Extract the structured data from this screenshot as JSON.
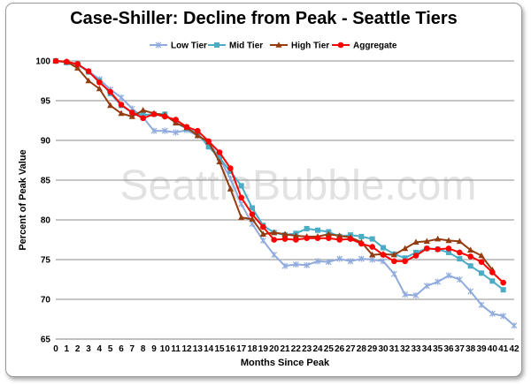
{
  "chart_data": {
    "type": "line",
    "title": "Case-Shiller: Decline from Peak - Seattle Tiers",
    "xlabel": "Months Since Peak",
    "ylabel": "Percent of Peak Value",
    "ylim": [
      65,
      100
    ],
    "yticks": [
      65,
      70,
      75,
      80,
      85,
      90,
      95,
      100
    ],
    "x": [
      0,
      1,
      2,
      3,
      4,
      5,
      6,
      7,
      8,
      9,
      10,
      11,
      12,
      13,
      14,
      15,
      16,
      17,
      18,
      19,
      20,
      21,
      22,
      23,
      24,
      25,
      26,
      27,
      28,
      29,
      30,
      31,
      32,
      33,
      34,
      35,
      36,
      37,
      38,
      39,
      40,
      41,
      42
    ],
    "grid": "horizontal",
    "legend_position": "top",
    "watermark": "SeattleBubble.com",
    "series": [
      {
        "name": "Low Tier",
        "color": "#8faadc",
        "marker": "star",
        "values": [
          100,
          99.8,
          99.5,
          98.7,
          97.7,
          96.4,
          95.4,
          94.0,
          92.9,
          91.2,
          91.2,
          91.0,
          91.3,
          90.6,
          89.8,
          87.8,
          85.2,
          82.0,
          79.5,
          77.4,
          75.6,
          74.2,
          74.4,
          74.3,
          74.8,
          74.7,
          75.1,
          74.8,
          75.1,
          75.0,
          74.8,
          73.2,
          70.6,
          70.5,
          71.7,
          72.2,
          73.0,
          72.5,
          71.0,
          69.3,
          68.2,
          67.9,
          66.7
        ]
      },
      {
        "name": "Mid Tier",
        "color": "#4bacc6",
        "marker": "square",
        "values": [
          100,
          99.8,
          99.6,
          98.6,
          97.5,
          95.9,
          94.4,
          93.5,
          93.2,
          93.3,
          93.3,
          92.2,
          91.5,
          90.9,
          89.2,
          87.8,
          86.1,
          84.3,
          81.5,
          79.3,
          78.4,
          78.1,
          78.3,
          78.9,
          78.7,
          78.5,
          77.9,
          78.1,
          77.9,
          77.6,
          76.5,
          75.7,
          75.2,
          75.9,
          76.4,
          76.3,
          75.9,
          75.1,
          74.2,
          73.3,
          72.3,
          71.2,
          null
        ]
      },
      {
        "name": "High Tier",
        "color": "#943b0f",
        "marker": "triangle",
        "values": [
          100,
          99.9,
          99.1,
          97.5,
          96.5,
          94.4,
          93.4,
          93.0,
          93.8,
          93.4,
          93.2,
          92.2,
          91.6,
          90.6,
          89.8,
          87.3,
          83.9,
          80.3,
          80.1,
          78.2,
          78.4,
          78.2,
          78.0,
          77.9,
          77.9,
          78.2,
          78.0,
          77.8,
          77.2,
          75.6,
          75.7,
          75.6,
          76.4,
          77.2,
          77.3,
          77.6,
          77.4,
          77.3,
          76.2,
          75.5,
          73.7,
          null,
          null
        ]
      },
      {
        "name": "Aggregate",
        "color": "#ff0000",
        "marker": "circle",
        "values": [
          100,
          99.9,
          99.6,
          98.7,
          97.3,
          96.1,
          94.5,
          93.5,
          92.8,
          93.3,
          93.0,
          92.6,
          91.7,
          91.2,
          89.9,
          88.5,
          86.5,
          82.8,
          80.7,
          79.1,
          77.5,
          77.6,
          77.5,
          77.7,
          77.7,
          77.7,
          77.5,
          77.6,
          77.0,
          76.6,
          75.6,
          74.8,
          74.8,
          75.5,
          76.4,
          76.3,
          76.4,
          75.9,
          75.4,
          74.7,
          73.4,
          72.1,
          null
        ]
      }
    ]
  }
}
